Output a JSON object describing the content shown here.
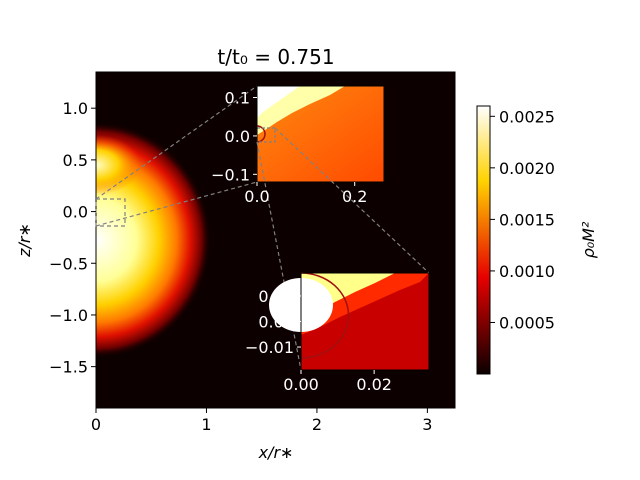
{
  "chart_data": {
    "type": "heatmap",
    "title": "t/t₀ = 0.751",
    "xlabel": "x/r∗",
    "ylabel": "z/r∗",
    "xlim": [
      0,
      3.25
    ],
    "ylim": [
      -1.9,
      1.35
    ],
    "xticks": [
      "0",
      "1",
      "2",
      "3"
    ],
    "yticks": [
      "1.0",
      "0.5",
      "0.0",
      "−0.5",
      "−1.0",
      "−1.5"
    ],
    "colorbar": {
      "label": "ρ₀M²",
      "colormap": "hot",
      "range": [
        0,
        0.0026
      ],
      "ticks": [
        "0.0025",
        "0.0020",
        "0.0015",
        "0.0010",
        "0.0005"
      ]
    },
    "insets": [
      {
        "name": "inset-1",
        "xlim": [
          0,
          0.26
        ],
        "ylim": [
          -0.12,
          0.13
        ],
        "xticks": [
          "0.0",
          "0.2"
        ],
        "yticks": [
          "0.1",
          "0.0",
          "−0.1"
        ]
      },
      {
        "name": "inset-2",
        "xlim": [
          0,
          0.035
        ],
        "ylim": [
          -0.019,
          0.019
        ],
        "xticks": [
          "0.00",
          "0.02"
        ],
        "yticks": [
          "0.01",
          "0.00",
          "−0.01"
        ]
      }
    ],
    "colors": {
      "background": "#0d0000",
      "inset1_fill": "#ff5000",
      "inset2_fill": "#c90000",
      "circle": "#a01010"
    }
  }
}
